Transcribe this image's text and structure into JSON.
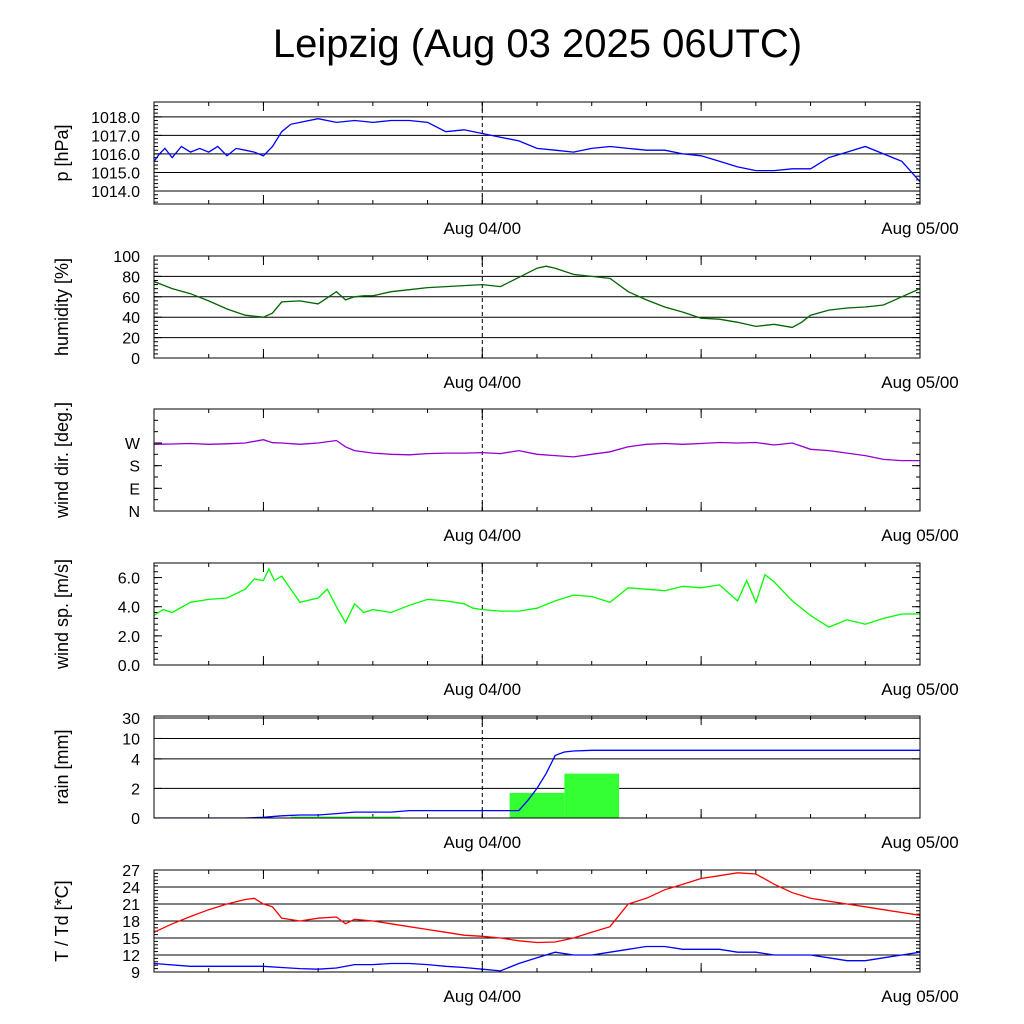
{
  "title": "Leipzig (Aug 03 2025 06UTC)",
  "colors": {
    "pressure": "#0000ff",
    "humidity": "#006400",
    "wind_dir": "#9400d3",
    "wind_speed": "#00ff00",
    "rain_line": "#0000ff",
    "rain_bar": "#33ff33",
    "temperature": "#ff0000",
    "dewpoint": "#0000ff",
    "midnight_line": "#000000"
  },
  "chart_data": [
    {
      "type": "line",
      "ylabel": "p [hPa]",
      "x_ticks": [
        "Aug 04/00",
        "Aug 05/00"
      ],
      "ylim": [
        1013.3,
        1018.8
      ],
      "ytick_values": [
        1014.0,
        1015.0,
        1016.0,
        1017.0,
        1018.0
      ],
      "ytick_labels": [
        "1014.0",
        "1015.0",
        "1016.0",
        "1017.0",
        "1018.0"
      ],
      "grid": true,
      "series": [
        {
          "color": "#0000ff",
          "x": [
            0,
            0.3,
            0.6,
            1,
            1.5,
            2,
            2.5,
            3,
            3.5,
            4,
            4.5,
            5,
            5.5,
            6,
            6.5,
            7,
            7.5,
            8,
            9,
            10,
            11,
            12,
            13,
            14,
            15,
            16,
            17,
            18,
            19,
            20,
            21,
            22,
            23,
            24,
            25,
            26,
            27,
            28,
            29,
            30,
            31,
            32,
            33,
            34,
            35,
            36,
            37,
            38,
            39,
            40,
            41,
            42
          ],
          "y": [
            1015.6,
            1016.0,
            1016.3,
            1015.8,
            1016.4,
            1016.1,
            1016.3,
            1016.1,
            1016.4,
            1015.9,
            1016.3,
            1016.2,
            1016.1,
            1015.9,
            1016.4,
            1017.2,
            1017.6,
            1017.7,
            1017.9,
            1017.7,
            1017.8,
            1017.7,
            1017.8,
            1017.8,
            1017.7,
            1017.2,
            1017.3,
            1017.1,
            1016.9,
            1016.7,
            1016.3,
            1016.2,
            1016.1,
            1016.3,
            1016.4,
            1016.3,
            1016.2,
            1016.2,
            1016.0,
            1015.9,
            1015.6,
            1015.3,
            1015.1,
            1015.1,
            1015.2,
            1015.2,
            1015.8,
            1016.1,
            1016.4,
            1016.0,
            1015.6,
            1014.5
          ]
        }
      ]
    },
    {
      "type": "line",
      "ylabel": "humidity [%]",
      "x_ticks": [
        "Aug 04/00",
        "Aug 05/00"
      ],
      "ylim": [
        0,
        100
      ],
      "ytick_values": [
        0,
        20,
        40,
        60,
        80,
        100
      ],
      "ytick_labels": [
        "0",
        "20",
        "40",
        "60",
        "80",
        "100"
      ],
      "grid": true,
      "series": [
        {
          "color": "#006400",
          "x": [
            0,
            1,
            2,
            3,
            4,
            5,
            6,
            6.5,
            7,
            8,
            9,
            9.5,
            10,
            10.5,
            11,
            11.5,
            12,
            13,
            14,
            15,
            16,
            17,
            18,
            19,
            20,
            21,
            21.5,
            22,
            23,
            24,
            25,
            26,
            27,
            28,
            29,
            30,
            31,
            32,
            33,
            34,
            35,
            35.5,
            36,
            37,
            38,
            39,
            40,
            41,
            42
          ],
          "y": [
            75,
            68,
            63,
            56,
            48,
            42,
            40,
            44,
            55,
            56,
            53,
            59,
            65,
            57,
            60,
            61,
            61,
            65,
            67,
            69,
            70,
            71,
            72,
            70,
            79,
            88,
            90,
            88,
            82,
            80,
            78,
            65,
            57,
            50,
            45,
            39,
            38,
            35,
            31,
            33,
            30,
            35,
            42,
            47,
            49,
            50,
            52,
            60,
            68
          ]
        }
      ]
    },
    {
      "type": "line",
      "ylabel": "wind dir. [deg.]",
      "x_ticks": [
        "Aug 04/00",
        "Aug 05/00"
      ],
      "ylim": [
        0,
        405
      ],
      "ytick_values": [
        0,
        90,
        180,
        270
      ],
      "ytick_labels": [
        "N",
        "E",
        "S",
        "W"
      ],
      "grid": false,
      "series": [
        {
          "color": "#9400d3",
          "x": [
            0,
            1,
            2,
            3,
            4,
            5,
            6,
            6.5,
            7,
            8,
            9,
            10,
            10.5,
            11,
            12,
            13,
            14,
            15,
            16,
            17,
            18,
            19,
            20,
            21,
            22,
            23,
            24,
            25,
            26,
            27,
            28,
            29,
            30,
            31,
            32,
            33,
            34,
            35,
            36,
            37,
            38,
            39,
            40,
            41,
            42
          ],
          "y": [
            265,
            266,
            268,
            265,
            267,
            270,
            283,
            271,
            270,
            265,
            270,
            280,
            255,
            240,
            230,
            225,
            223,
            228,
            230,
            230,
            232,
            228,
            240,
            225,
            220,
            215,
            225,
            235,
            255,
            265,
            268,
            265,
            268,
            272,
            270,
            272,
            262,
            270,
            245,
            240,
            230,
            220,
            205,
            200,
            200
          ]
        }
      ]
    },
    {
      "type": "line",
      "ylabel": "wind sp. [m/s]",
      "x_ticks": [
        "Aug 04/00",
        "Aug 05/00"
      ],
      "ylim": [
        0,
        7.0
      ],
      "ytick_values": [
        0.0,
        2.0,
        4.0,
        6.0
      ],
      "ytick_labels": [
        "0.0",
        "2.0",
        "4.0",
        "6.0"
      ],
      "grid": false,
      "series": [
        {
          "color": "#00ff00",
          "x": [
            0,
            0.5,
            1,
            2,
            3,
            4,
            5,
            5.5,
            6,
            6.3,
            6.6,
            7,
            8,
            9,
            9.5,
            10,
            10.5,
            11,
            11.5,
            12,
            13,
            14,
            15,
            16,
            17,
            17.5,
            18,
            19,
            20,
            21,
            22,
            23,
            24,
            25,
            26,
            27,
            28,
            29,
            30,
            31,
            32,
            32.5,
            33,
            33.5,
            34,
            35,
            36,
            37,
            38,
            39,
            40,
            41,
            42
          ],
          "y": [
            3.4,
            3.8,
            3.6,
            4.3,
            4.5,
            4.6,
            5.2,
            5.9,
            5.8,
            6.6,
            5.8,
            6.1,
            4.3,
            4.6,
            5.2,
            4.0,
            2.9,
            4.2,
            3.6,
            3.8,
            3.6,
            4.1,
            4.5,
            4.4,
            4.2,
            3.9,
            3.8,
            3.7,
            3.7,
            3.9,
            4.4,
            4.8,
            4.7,
            4.3,
            5.3,
            5.2,
            5.1,
            5.4,
            5.3,
            5.5,
            4.4,
            5.8,
            4.3,
            6.2,
            5.7,
            4.4,
            3.4,
            2.6,
            3.1,
            2.8,
            3.2,
            3.5,
            3.5
          ]
        }
      ]
    },
    {
      "type": "bar+line",
      "ylabel": "rain [mm]",
      "x_ticks": [
        "Aug 04/00",
        "Aug 05/00"
      ],
      "ytick_labels": [
        "0",
        "2",
        "4",
        "10",
        "30"
      ],
      "yscale": "nonlinear",
      "grid": true,
      "bars": [
        {
          "x_start": 7.5,
          "x_end": 13.5,
          "value": 0.1
        },
        {
          "x_start": 19.5,
          "x_end": 22.5,
          "value": 1.7
        },
        {
          "x_start": 22.5,
          "x_end": 25.5,
          "value": 3.0
        }
      ],
      "series": [
        {
          "color": "#0000ff",
          "x": [
            0,
            5,
            6,
            7,
            8,
            9,
            10,
            11,
            12,
            13,
            14,
            15,
            16,
            17,
            18,
            19,
            20,
            20.5,
            21,
            21.5,
            22,
            22.5,
            23,
            24,
            25,
            30,
            35,
            40,
            42
          ],
          "y": [
            0,
            0,
            0.05,
            0.15,
            0.2,
            0.2,
            0.3,
            0.4,
            0.4,
            0.4,
            0.5,
            0.5,
            0.5,
            0.5,
            0.5,
            0.5,
            0.5,
            1.2,
            2.0,
            3.0,
            5.0,
            6.0,
            6.3,
            6.5,
            6.5,
            6.5,
            6.5,
            6.5,
            6.5
          ]
        }
      ]
    },
    {
      "type": "line",
      "ylabel": "T / Td [*C]",
      "x_ticks": [
        "Aug 04/00",
        "Aug 05/00"
      ],
      "ylim": [
        9,
        27
      ],
      "ytick_values": [
        9,
        12,
        15,
        18,
        21,
        24,
        27
      ],
      "ytick_labels": [
        "9",
        "12",
        "15",
        "18",
        "21",
        "24",
        "27"
      ],
      "grid": true,
      "series": [
        {
          "color": "#ff0000",
          "x": [
            0,
            1,
            2,
            3,
            4,
            5,
            5.5,
            6,
            6.5,
            7,
            8,
            9,
            10,
            10.5,
            11,
            12,
            13,
            14,
            15,
            16,
            17,
            18,
            19,
            20,
            21,
            22,
            23,
            24,
            25,
            25.5,
            26,
            27,
            28,
            29,
            30,
            31,
            32,
            33,
            34,
            35,
            36,
            37,
            38,
            39,
            40,
            41,
            42
          ],
          "y": [
            16,
            17.5,
            18.8,
            20,
            21,
            21.8,
            22,
            21,
            20.5,
            18.5,
            18,
            18.5,
            18.7,
            17.5,
            18.3,
            18,
            17.5,
            17,
            16.5,
            16,
            15.5,
            15.3,
            15,
            14.5,
            14.2,
            14.3,
            15,
            16,
            17,
            19,
            21,
            22,
            23.5,
            24.5,
            25.5,
            26,
            26.5,
            26.3,
            24.5,
            23,
            22,
            21.5,
            21,
            20.5,
            20,
            19.5,
            19
          ]
        },
        {
          "color": "#0000ff",
          "x": [
            0,
            2,
            4,
            6,
            7,
            8,
            9,
            10,
            11,
            12,
            13,
            14,
            15,
            16,
            17,
            18,
            19,
            20,
            21,
            22,
            23,
            24,
            25,
            26,
            27,
            28,
            29,
            30,
            31,
            32,
            33,
            34,
            35,
            36,
            37,
            38,
            39,
            40,
            41,
            42
          ],
          "y": [
            10.5,
            10,
            10,
            10,
            9.8,
            9.6,
            9.5,
            9.7,
            10.3,
            10.3,
            10.5,
            10.5,
            10.3,
            10,
            9.8,
            9.5,
            9.2,
            10.5,
            11.5,
            12.5,
            12,
            12,
            12.5,
            13,
            13.5,
            13.5,
            13,
            13,
            13,
            12.5,
            12.5,
            12,
            12,
            12,
            11.5,
            11,
            11,
            11.5,
            12,
            12.5
          ]
        }
      ]
    }
  ]
}
